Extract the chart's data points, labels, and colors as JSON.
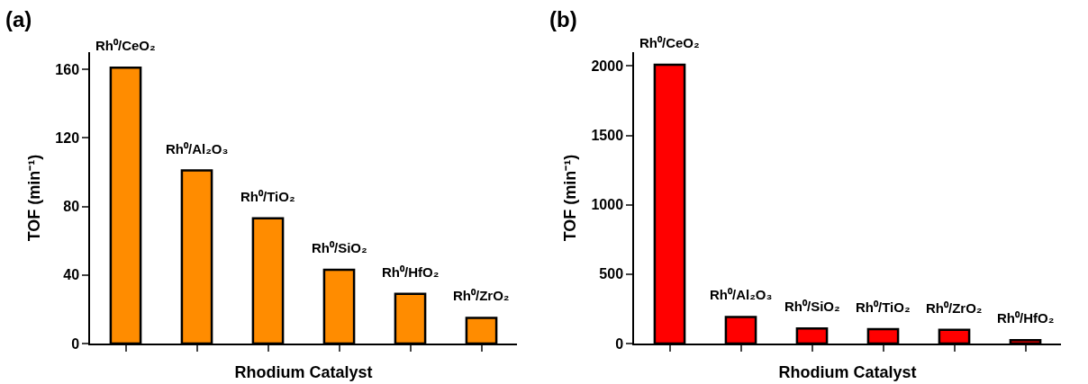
{
  "chart_data": [
    {
      "type": "bar",
      "title": "(a)",
      "xlabel": "Rhodium Catalyst",
      "ylabel": "TOF (min⁻¹)",
      "categories": [
        "Rh⁰/CeO₂",
        "Rh⁰/Al₂O₃",
        "Rh⁰/TiO₂",
        "Rh⁰/SiO₂",
        "Rh⁰/HfO₂",
        "Rh⁰/ZrO₂"
      ],
      "values": [
        161,
        101,
        73,
        43,
        29,
        15
      ],
      "color": "#ff8c00",
      "ylim": [
        0,
        170
      ],
      "yticks": [
        0,
        40,
        80,
        120,
        160
      ],
      "grid": false,
      "tick_labels": "y"
    },
    {
      "type": "bar",
      "title": "(b)",
      "xlabel": "Rhodium Catalyst",
      "ylabel": "TOF (min⁻¹)",
      "categories": [
        "Rh⁰/CeO₂",
        "Rh⁰/Al₂O₃",
        "Rh⁰/SiO₂",
        "Rh⁰/TiO₂",
        "Rh⁰/ZrO₂",
        "Rh⁰/HfO₂"
      ],
      "values": [
        2010,
        192,
        109,
        104,
        99,
        25
      ],
      "color": "#ff0000",
      "ylim": [
        0,
        2100
      ],
      "yticks": [
        0,
        500,
        1000,
        1500,
        2000
      ],
      "grid": false,
      "tick_labels": "y"
    }
  ]
}
